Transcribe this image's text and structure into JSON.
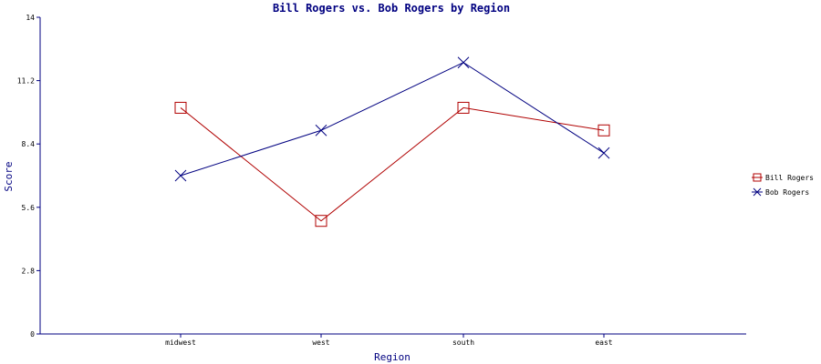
{
  "colors": {
    "axis": "#000080",
    "title": "#000080",
    "text": "#000000"
  },
  "chart_data": {
    "type": "line",
    "title": "Bill Rogers vs. Bob Rogers by Region",
    "xlabel": "Region",
    "ylabel": "Score",
    "categories": [
      "midwest",
      "west",
      "south",
      "east"
    ],
    "ylim": [
      0,
      14
    ],
    "yticks": [
      "0",
      "2.8",
      "5.6",
      "8.4",
      "11.2",
      "14"
    ],
    "grid": false,
    "legend_position": "right",
    "series": [
      {
        "name": "Bill Rogers",
        "values": [
          10,
          5,
          10,
          9
        ],
        "color": "#b00000",
        "marker": "square"
      },
      {
        "name": "Bob Rogers",
        "values": [
          7,
          9,
          12,
          8
        ],
        "color": "#000080",
        "marker": "x"
      }
    ]
  }
}
